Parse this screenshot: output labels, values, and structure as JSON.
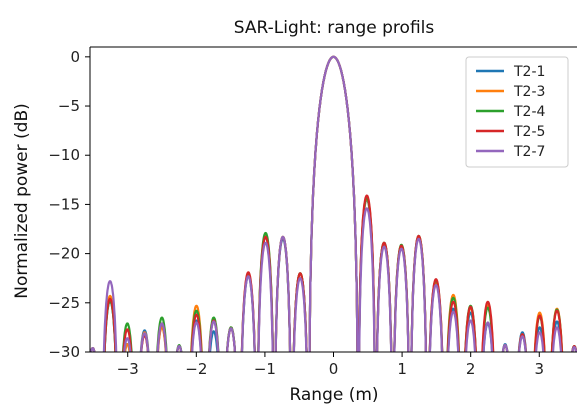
{
  "chart_data": {
    "type": "line",
    "title": "SAR-Light: range profils",
    "xlabel": "Range (m)",
    "ylabel": "Normalized power (dB)",
    "xlim": [
      -3.55,
      3.55
    ],
    "ylim": [
      -30,
      1
    ],
    "xticks": [
      -3,
      -2,
      -1,
      0,
      1,
      2,
      3
    ],
    "xtick_labels": [
      "−3",
      "−2",
      "−1",
      "0",
      "1",
      "2",
      "3"
    ],
    "yticks": [
      0,
      -5,
      -10,
      -15,
      -20,
      -25,
      -30
    ],
    "ytick_labels": [
      "0",
      "−5",
      "−10",
      "−15",
      "−20",
      "−25",
      "−30"
    ],
    "grid": false,
    "legend_position": "top-right",
    "series": [
      {
        "name": "T2-1",
        "color": "#1f77b4",
        "lobe_peaks_db": [
          -29.6,
          -24.8,
          -29.2,
          -27.8,
          -27.4,
          -29.4,
          -26.8,
          -27.9,
          -27.5,
          -22.3,
          -18.3,
          -18.5,
          -22.0,
          -13.8,
          -14.5,
          -18.9,
          -19.3,
          -18.3,
          -23.0,
          -25.6,
          -26.0,
          -27.1,
          -29.2,
          -28.0,
          -27.5,
          -26.9,
          -29.4
        ]
      },
      {
        "name": "T2-3",
        "color": "#ff7f0e",
        "lobe_peaks_db": [
          -29.6,
          -24.3,
          -29.2,
          -28.0,
          -27.5,
          -29.4,
          -25.3,
          -26.8,
          -27.5,
          -22.1,
          -18.1,
          -18.3,
          -22.0,
          -13.7,
          -14.4,
          -18.9,
          -19.2,
          -18.3,
          -22.9,
          -24.2,
          -25.5,
          -25.2,
          -29.3,
          -28.2,
          -26.0,
          -25.6,
          -29.5
        ]
      },
      {
        "name": "T2-4",
        "color": "#2ca02c",
        "lobe_peaks_db": [
          -29.6,
          -24.8,
          -27.1,
          -28.2,
          -26.5,
          -29.3,
          -25.8,
          -26.5,
          -27.5,
          -22.1,
          -17.9,
          -18.3,
          -22.0,
          -13.6,
          -14.3,
          -18.9,
          -19.1,
          -18.2,
          -22.7,
          -24.5,
          -25.3,
          -25.5,
          -29.3,
          -28.3,
          -26.4,
          -25.7,
          -29.4
        ]
      },
      {
        "name": "T2-5",
        "color": "#d62728",
        "lobe_peaks_db": [
          -29.6,
          -24.6,
          -27.7,
          -28.3,
          -27.1,
          -29.4,
          -26.2,
          -26.8,
          -27.6,
          -21.9,
          -18.3,
          -18.3,
          -22.0,
          -13.6,
          -14.1,
          -18.9,
          -19.2,
          -18.2,
          -22.6,
          -24.9,
          -25.4,
          -24.9,
          -29.3,
          -28.2,
          -26.3,
          -25.8,
          -29.4
        ]
      },
      {
        "name": "T2-7",
        "color": "#9467bd",
        "lobe_peaks_db": [
          -29.6,
          -22.8,
          -28.6,
          -28.1,
          -27.1,
          -29.4,
          -27.0,
          -26.9,
          -27.6,
          -22.3,
          -18.9,
          -18.3,
          -22.5,
          -14.0,
          -15.4,
          -19.3,
          -19.5,
          -18.5,
          -23.2,
          -25.9,
          -26.8,
          -27.0,
          -29.3,
          -28.4,
          -28.0,
          -27.5,
          -29.5
        ]
      }
    ]
  }
}
